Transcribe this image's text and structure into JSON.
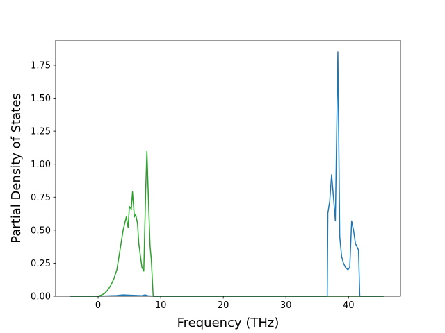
{
  "chart_data": {
    "type": "line",
    "x_label": "Frequency (THz)",
    "y_label": "Partial Density of States",
    "xlim": [
      -6.78,
      48.3
    ],
    "ylim": [
      0,
      1.939
    ],
    "xticks": [
      0,
      10,
      20,
      30,
      40
    ],
    "yticks": [
      {
        "value": 0,
        "label": "0.00"
      },
      {
        "value": 0.25,
        "label": "0.25"
      },
      {
        "value": 0.5,
        "label": "0.50"
      },
      {
        "value": 0.75,
        "label": "0.75"
      },
      {
        "value": 1,
        "label": "1.00"
      },
      {
        "value": 1.25,
        "label": "1.25"
      },
      {
        "value": 1.5,
        "label": "1.50"
      },
      {
        "value": 1.75,
        "label": "1.75"
      }
    ],
    "series": [
      {
        "color": "#1f77b4",
        "x": [
          -4.5,
          0,
          3,
          4,
          5,
          6,
          7,
          7.5,
          8,
          9,
          20,
          36.6,
          36.7,
          37,
          37.3,
          37.6,
          37.9,
          38.3,
          38.6,
          38.9,
          39.2,
          39.5,
          39.9,
          40.2,
          40.5,
          40.8,
          41.1,
          41.4,
          41.6,
          41.8,
          45.6
        ],
        "values": [
          0,
          0,
          0.005,
          0.01,
          0.008,
          0.006,
          0.004,
          0.01,
          0.003,
          0,
          0,
          0,
          0.63,
          0.72,
          0.92,
          0.75,
          0.57,
          1.85,
          0.45,
          0.3,
          0.25,
          0.22,
          0.2,
          0.22,
          0.57,
          0.5,
          0.4,
          0.37,
          0.35,
          0,
          0
        ]
      },
      {
        "color": "#2ca02c",
        "x": [
          -4.5,
          0,
          0.5,
          1,
          1.5,
          2,
          2.5,
          3,
          3.5,
          4,
          4.5,
          4.8,
          5,
          5.3,
          5.5,
          5.8,
          6,
          6.3,
          6.5,
          7,
          7.3,
          7.6,
          7.8,
          8,
          8.3,
          8.5,
          8.8,
          20,
          45.6
        ],
        "values": [
          0,
          0,
          0.008,
          0.02,
          0.045,
          0.08,
          0.13,
          0.2,
          0.35,
          0.5,
          0.6,
          0.52,
          0.68,
          0.66,
          0.79,
          0.6,
          0.62,
          0.55,
          0.4,
          0.22,
          0.19,
          0.8,
          1.1,
          0.8,
          0.38,
          0.28,
          0,
          0,
          0
        ]
      }
    ]
  }
}
